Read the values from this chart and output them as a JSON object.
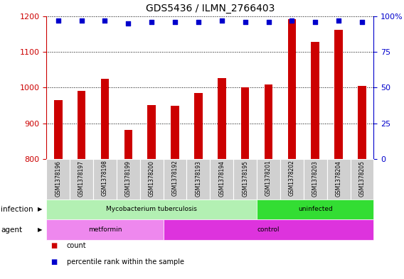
{
  "title": "GDS5436 / ILMN_2766403",
  "samples": [
    "GSM1378196",
    "GSM1378197",
    "GSM1378198",
    "GSM1378199",
    "GSM1378200",
    "GSM1378192",
    "GSM1378193",
    "GSM1378194",
    "GSM1378195",
    "GSM1378201",
    "GSM1378202",
    "GSM1378203",
    "GSM1378204",
    "GSM1378205"
  ],
  "counts": [
    965,
    990,
    1025,
    882,
    950,
    948,
    985,
    1027,
    1000,
    1008,
    1192,
    1128,
    1162,
    1005
  ],
  "percentiles": [
    97,
    97,
    97,
    95,
    96,
    96,
    96,
    97,
    96,
    96,
    97,
    96,
    97,
    96
  ],
  "ylim_left": [
    800,
    1200
  ],
  "ylim_right": [
    0,
    100
  ],
  "yticks_left": [
    800,
    900,
    1000,
    1100,
    1200
  ],
  "yticks_right": [
    0,
    25,
    50,
    75,
    100
  ],
  "bar_color": "#cc0000",
  "dot_color": "#0000cc",
  "bg_color": "#ffffff",
  "infection_groups": [
    {
      "label": "Mycobacterium tuberculosis",
      "start": 0,
      "end": 9,
      "color": "#b3f0b3"
    },
    {
      "label": "uninfected",
      "start": 9,
      "end": 14,
      "color": "#33dd33"
    }
  ],
  "agent_groups": [
    {
      "label": "metformin",
      "start": 0,
      "end": 5,
      "color": "#ee88ee"
    },
    {
      "label": "control",
      "start": 5,
      "end": 14,
      "color": "#dd33dd"
    }
  ],
  "legend_count_label": "count",
  "legend_pct_label": "percentile rank within the sample",
  "infection_label": "infection",
  "agent_label": "agent",
  "bar_width": 0.35
}
